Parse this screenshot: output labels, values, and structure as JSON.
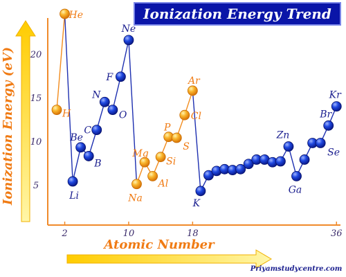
{
  "chart_data": {
    "type": "line",
    "title": "Ionization Energy Trend",
    "xlabel": "Atomic Number",
    "ylabel": "Ionization Energy (eV)",
    "xlim": [
      0,
      36
    ],
    "ylim": [
      0,
      25
    ],
    "x_ticks": [
      "2",
      "10",
      "18",
      "36"
    ],
    "y_ticks": [
      "5",
      "10",
      "15",
      "20"
    ],
    "points": [
      {
        "z": 1,
        "ie": 13.6
      },
      {
        "z": 2,
        "ie": 24.6
      },
      {
        "z": 3,
        "ie": 5.4
      },
      {
        "z": 4,
        "ie": 9.3
      },
      {
        "z": 5,
        "ie": 8.3
      },
      {
        "z": 6,
        "ie": 11.3
      },
      {
        "z": 7,
        "ie": 14.5
      },
      {
        "z": 8,
        "ie": 13.6
      },
      {
        "z": 9,
        "ie": 17.4
      },
      {
        "z": 10,
        "ie": 21.6
      },
      {
        "z": 11,
        "ie": 5.1
      },
      {
        "z": 12,
        "ie": 7.6
      },
      {
        "z": 13,
        "ie": 6.0
      },
      {
        "z": 14,
        "ie": 8.2
      },
      {
        "z": 15,
        "ie": 10.5
      },
      {
        "z": 16,
        "ie": 10.4
      },
      {
        "z": 17,
        "ie": 13.0
      },
      {
        "z": 18,
        "ie": 15.8
      },
      {
        "z": 19,
        "ie": 4.3
      },
      {
        "z": 20,
        "ie": 6.1
      },
      {
        "z": 21,
        "ie": 6.6
      },
      {
        "z": 22,
        "ie": 6.8
      },
      {
        "z": 23,
        "ie": 6.7
      },
      {
        "z": 24,
        "ie": 6.8
      },
      {
        "z": 25,
        "ie": 7.4
      },
      {
        "z": 26,
        "ie": 7.9
      },
      {
        "z": 27,
        "ie": 7.9
      },
      {
        "z": 28,
        "ie": 7.6
      },
      {
        "z": 29,
        "ie": 7.7
      },
      {
        "z": 30,
        "ie": 9.4
      },
      {
        "z": 31,
        "ie": 6.0
      },
      {
        "z": 32,
        "ie": 7.9
      },
      {
        "z": 33,
        "ie": 9.8
      },
      {
        "z": 34,
        "ie": 9.8
      },
      {
        "z": 35,
        "ie": 11.8
      },
      {
        "z": 36,
        "ie": 14.0
      }
    ],
    "labels": [
      {
        "z": 1,
        "text": "H"
      },
      {
        "z": 2,
        "text": "He"
      },
      {
        "z": 3,
        "text": "Li"
      },
      {
        "z": 4,
        "text": "Be"
      },
      {
        "z": 5,
        "text": "B"
      },
      {
        "z": 6,
        "text": "C"
      },
      {
        "z": 7,
        "text": "N"
      },
      {
        "z": 8,
        "text": "O"
      },
      {
        "z": 9,
        "text": "F"
      },
      {
        "z": 10,
        "text": "Ne"
      },
      {
        "z": 11,
        "text": "Na"
      },
      {
        "z": 12,
        "text": "Mg"
      },
      {
        "z": 13,
        "text": "Al"
      },
      {
        "z": 14,
        "text": "Si"
      },
      {
        "z": 15,
        "text": "P"
      },
      {
        "z": 16,
        "text": "S"
      },
      {
        "z": 17,
        "text": "Cl"
      },
      {
        "z": 18,
        "text": "Ar"
      },
      {
        "z": 19,
        "text": "K"
      },
      {
        "z": 30,
        "text": "Zn"
      },
      {
        "z": 31,
        "text": "Ga"
      },
      {
        "z": 34,
        "text": "Se"
      },
      {
        "z": 35,
        "text": "Br"
      },
      {
        "z": 36,
        "text": "Kr"
      }
    ],
    "grid": false
  },
  "credit": "Priyamstudycentre.com",
  "colors": {
    "orange_point": "#f7a81c",
    "blue_point": "#1034c8",
    "orange_line": "#f28c1e",
    "blue_line": "#1d2fb0",
    "orange_text": "#f07b14",
    "blue_text": "#1b1f8f",
    "axis": "#f08a2a",
    "title_bg": "#0a15a8"
  }
}
